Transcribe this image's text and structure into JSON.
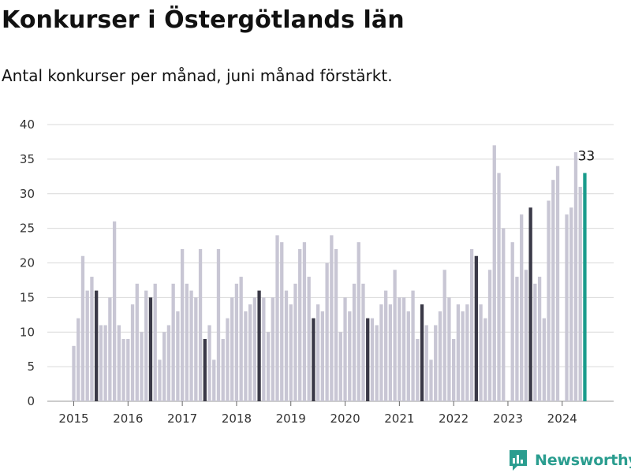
{
  "title": "Konkurser i Östergötlands län",
  "subtitle": "Antal konkurser per månad, juni månad förstärkt.",
  "brand": {
    "name": "Newsworthy",
    "icon": "newsworthy-logo-icon"
  },
  "colors": {
    "bar": "#c8c6d4",
    "highlight": "#3a3947",
    "latest": "#1a9c8c",
    "grid": "#d9d9d9",
    "brand": "#2a9d8f"
  },
  "chart_data": {
    "type": "bar",
    "title": "Konkurser i Östergötlands län",
    "subtitle": "Antal konkurser per månad, juni månad förstärkt.",
    "start": "2015-01",
    "highlight_month": "06",
    "ylim": [
      0,
      40
    ],
    "yticks": [
      0,
      5,
      10,
      15,
      20,
      25,
      30,
      35,
      40
    ],
    "xticks": [
      "2015",
      "2016",
      "2017",
      "2018",
      "2019",
      "2020",
      "2021",
      "2022",
      "2023",
      "2024"
    ],
    "grid": true,
    "labeled_point": {
      "month": "2024-06",
      "label": "33"
    },
    "values": [
      8,
      12,
      21,
      16,
      18,
      16,
      11,
      11,
      15,
      26,
      11,
      9,
      9,
      14,
      17,
      10,
      16,
      15,
      17,
      6,
      10,
      11,
      17,
      13,
      22,
      17,
      16,
      15,
      22,
      9,
      11,
      6,
      22,
      9,
      12,
      15,
      17,
      18,
      13,
      14,
      15,
      16,
      15,
      10,
      15,
      24,
      23,
      16,
      14,
      17,
      22,
      23,
      18,
      12,
      14,
      13,
      20,
      24,
      22,
      10,
      15,
      13,
      17,
      23,
      17,
      12,
      12,
      11,
      14,
      16,
      14,
      19,
      15,
      15,
      13,
      16,
      9,
      14,
      11,
      6,
      11,
      13,
      19,
      15,
      9,
      14,
      13,
      14,
      22,
      21,
      14,
      12,
      19,
      37,
      33,
      25,
      null,
      23,
      18,
      27,
      19,
      28,
      17,
      18,
      12,
      29,
      32,
      34,
      null,
      27,
      28,
      36,
      31,
      33
    ]
  }
}
